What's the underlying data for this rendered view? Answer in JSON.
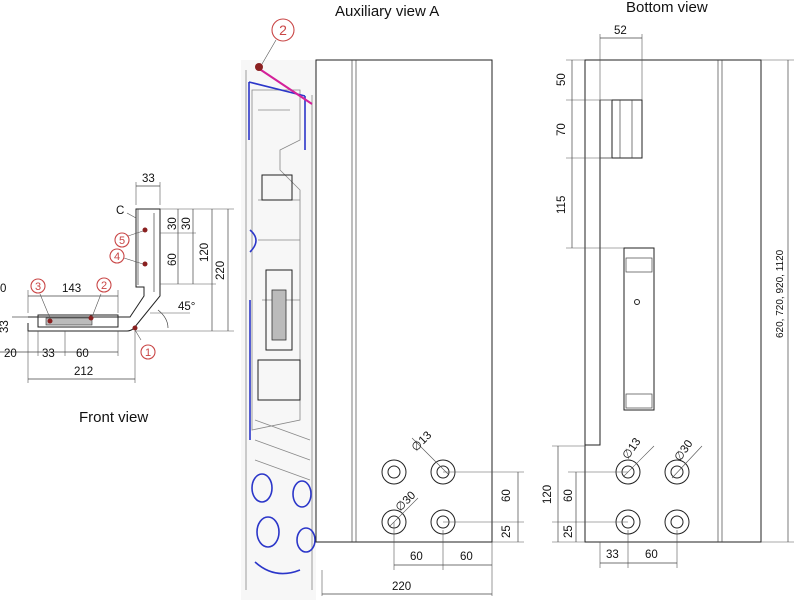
{
  "views": {
    "auxiliary": {
      "title": "Auxiliary view A"
    },
    "bottom": {
      "title": "Bottom view"
    },
    "front": {
      "title": "Front view"
    }
  },
  "auxiliary_dims": {
    "width_bottom": "220",
    "x_left": "60",
    "x_right": "60",
    "y_spacing": "60",
    "y_bottom": "25",
    "dia_small": "∅13",
    "dia_large": "∅30"
  },
  "bottom_dims": {
    "top_width": "52",
    "v50": "50",
    "v70": "70",
    "v115": "115",
    "height_options": "620, 720, 920, 1120",
    "dia_small": "∅13",
    "dia_large": "∅30",
    "v120": "120",
    "v60": "60",
    "v25": "25",
    "h33": "33",
    "h60": "60"
  },
  "front_dims": {
    "d33_top": "33",
    "c_label": "C",
    "v30_a": "30",
    "v30_b": "30",
    "v60": "60",
    "v120": "120",
    "v220": "220",
    "d143": "143",
    "d45": "45°",
    "d33_left": "33",
    "d20": "20",
    "d33_bottom": "33",
    "d60_bottom": "60",
    "d212": "212",
    "d0": "0"
  },
  "markers": [
    "1",
    "2",
    "3",
    "4",
    "5",
    "2"
  ]
}
